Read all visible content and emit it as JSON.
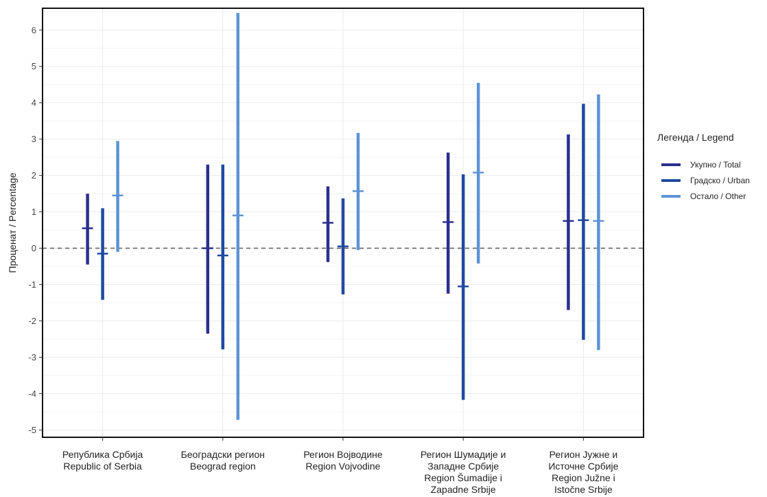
{
  "chart_data": {
    "type": "errorbar",
    "ylabel": "Проценат / Percentage",
    "ylim": [
      -5.2,
      6.6
    ],
    "yticks": [
      -5,
      -4,
      -3,
      -2,
      -1,
      0,
      1,
      2,
      3,
      4,
      5,
      6
    ],
    "reference_line": 0,
    "grid": true,
    "legend": {
      "title": "Легенда / Legend",
      "placement": "right"
    },
    "categories": [
      [
        "Република Србија",
        "Republic of Serbia"
      ],
      [
        "Београдски регион",
        "Beograd region"
      ],
      [
        "Регион Војводине",
        "Region Vojvodine"
      ],
      [
        "Регион Шумадије и",
        "Западне Србије",
        "Region Šumadije i",
        "Zapadne Srbije"
      ],
      [
        "Регион Јужне и",
        "Источне Србије",
        "Region Južne i",
        "Istočne Srbije"
      ]
    ],
    "series": [
      {
        "name": "Укупно / Total",
        "color": "#2b2f8f",
        "estimate": [
          0.55,
          0.0,
          0.7,
          0.72,
          0.75
        ],
        "lower": [
          -0.45,
          -2.35,
          -0.38,
          -1.25,
          -1.7
        ],
        "upper": [
          1.5,
          2.3,
          1.7,
          2.63,
          3.13
        ]
      },
      {
        "name": "Градско / Urban",
        "color": "#1f4aa0",
        "estimate": [
          -0.15,
          -0.2,
          0.05,
          -1.05,
          0.77
        ],
        "lower": [
          -1.42,
          -2.78,
          -1.27,
          -4.17,
          -2.52
        ],
        "upper": [
          1.1,
          2.3,
          1.37,
          2.03,
          3.97
        ]
      },
      {
        "name": "Остало / Other",
        "color": "#5d93d6",
        "estimate": [
          1.45,
          0.9,
          1.57,
          2.08,
          0.75
        ],
        "lower": [
          -0.1,
          -4.72,
          -0.05,
          -0.42,
          -2.8
        ],
        "upper": [
          2.95,
          6.47,
          3.17,
          4.55,
          4.23
        ]
      }
    ]
  }
}
